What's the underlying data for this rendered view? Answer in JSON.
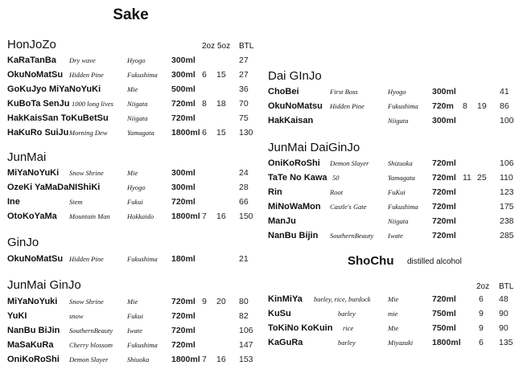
{
  "title": "Sake",
  "headers": {
    "oz2": "2oz",
    "oz5": "5oz",
    "btl": "BTL"
  },
  "sections": [
    {
      "heading": "HonJoZo",
      "items": [
        {
          "name": "KaRaTanBa",
          "desc": "Dry wave",
          "region": "Hyogo",
          "size": "300ml",
          "oz2": "",
          "oz5": "",
          "btl": "27"
        },
        {
          "name": "OkuNoMatSu",
          "desc": "Hidden Pine",
          "region": "Fukushima",
          "size": "300ml",
          "oz2": "6",
          "oz5": "15",
          "btl": "27"
        },
        {
          "name": "GoKuJyo MiYaNoYuKi",
          "desc": "",
          "region": "Mie",
          "size": "500ml",
          "oz2": "",
          "oz5": "",
          "btl": "36"
        },
        {
          "name": "KuBoTa SenJu",
          "desc": "1000 long lives",
          "region": "Niigata",
          "size": "720ml",
          "oz2": "8",
          "oz5": "18",
          "btl": "70"
        },
        {
          "name": "HakKaisSan ToKuBetSu",
          "desc": "",
          "region": "Niigata",
          "size": "720ml",
          "oz2": "",
          "oz5": "",
          "btl": "75"
        },
        {
          "name": "HaKuRo SuiJu",
          "desc": "Morning Dew",
          "region": "Yamagata",
          "size": "1800ml",
          "oz2": "6",
          "oz5": "15",
          "btl": "130"
        }
      ]
    },
    {
      "heading": "JunMai",
      "items": [
        {
          "name": "MiYaNoYuKi",
          "desc": "Snow Shrine",
          "region": "Mie",
          "size": "300ml",
          "oz2": "",
          "oz5": "",
          "btl": "24"
        },
        {
          "name": "OzeKi YaMaDaNIShiKi",
          "desc": "",
          "region": "Hyogo",
          "size": "300ml",
          "oz2": "",
          "oz5": "",
          "btl": "28"
        },
        {
          "name": "Ine",
          "desc": "Stem",
          "region": "Fukui",
          "size": "720ml",
          "oz2": "",
          "oz5": "",
          "btl": "66"
        },
        {
          "name": "OtoKoYaMa",
          "desc": "Mountain Man",
          "region": "Hokkaido",
          "size": "1800ml",
          "oz2": "7",
          "oz5": "16",
          "btl": "150"
        }
      ]
    },
    {
      "heading": "GinJo",
      "items": [
        {
          "name": "OkuNoMatSu",
          "desc": "Hidden Pine",
          "region": "Fukushima",
          "size": "180ml",
          "oz2": "",
          "oz5": "",
          "btl": "21"
        }
      ]
    },
    {
      "heading": "JunMai GinJo",
      "items": [
        {
          "name": "MiYaNoYuki",
          "desc": "Snow Shrine",
          "region": "Mie",
          "size": "720ml",
          "oz2": "9",
          "oz5": "20",
          "btl": "80"
        },
        {
          "name": "YuKI",
          "desc": "snow",
          "region": "Fukui",
          "size": "720ml",
          "oz2": "",
          "oz5": "",
          "btl": "82"
        },
        {
          "name": "NanBu BiJin",
          "desc": "SouthernBeauty",
          "region": "Iwate",
          "size": "720ml",
          "oz2": "",
          "oz5": "",
          "btl": "106"
        },
        {
          "name": "MaSaKuRa",
          "desc": "Cherry blossom",
          "region": "Fukushima",
          "size": "720ml",
          "oz2": "",
          "oz5": "",
          "btl": "147"
        },
        {
          "name": "OniKoRoShi",
          "desc": "Demon Slayer",
          "region": "Shiuoka",
          "size": "1800ml",
          "oz2": "7",
          "oz5": "16",
          "btl": "153"
        }
      ]
    },
    {
      "heading": "Dai GInJo",
      "items": [
        {
          "name": "ChoBei",
          "desc": "First Boss",
          "region": "Hyogo",
          "size": "300ml",
          "oz2": "",
          "oz5": "",
          "btl": "41"
        },
        {
          "name": "OkuNoMatsu",
          "desc": "Hidden Pine",
          "region": "Fukushima",
          "size": "720m",
          "oz2": "8",
          "oz5": "19",
          "btl": "86"
        },
        {
          "name": "HakKaisan",
          "desc": "",
          "region": "Niigata",
          "size": "300ml",
          "oz2": "",
          "oz5": "",
          "btl": "100"
        }
      ]
    },
    {
      "heading": "JunMai DaiGinJo",
      "items": [
        {
          "name": "OniKoRoShi",
          "desc": "Demon Slayer",
          "region": "Shizuoka",
          "size": "720ml",
          "oz2": "",
          "oz5": "",
          "btl": "106"
        },
        {
          "name": "TaTe No Kawa",
          "desc": "50",
          "region": "Yamagata",
          "size": "720ml",
          "oz2": "11",
          "oz5": "25",
          "btl": "110"
        },
        {
          "name": "Rin",
          "desc": "Root",
          "region": "FuKui",
          "size": "720ml",
          "oz2": "",
          "oz5": "",
          "btl": "123"
        },
        {
          "name": "MiNoWaMon",
          "desc": "Castle's Gate",
          "region": "Fukushima",
          "size": "720ml",
          "oz2": "",
          "oz5": "",
          "btl": "175"
        },
        {
          "name": "ManJu",
          "desc": "",
          "region": "Niigata",
          "size": "720ml",
          "oz2": "",
          "oz5": "",
          "btl": "238"
        },
        {
          "name": "NanBu Bijin",
          "desc": "SouthernBeauty",
          "region": "Iwate",
          "size": "720ml",
          "oz2": "",
          "oz5": "",
          "btl": "285"
        }
      ]
    }
  ],
  "shochu": {
    "heading": "ShoChu",
    "subtitle": "distilled alcohol",
    "headers": {
      "oz2": "2oz",
      "btl": "BTL"
    },
    "items": [
      {
        "name": "KinMiYa",
        "desc": "barley, rice, burdock",
        "region": "Mie",
        "size": "720ml",
        "oz2": "6",
        "btl": "48"
      },
      {
        "name": "KuSu",
        "desc": "barley",
        "region": "mie",
        "size": "750ml",
        "oz2": "9",
        "btl": "90"
      },
      {
        "name": "ToKiNo KoKuin",
        "desc": "rice",
        "region": "Mie",
        "size": "750ml",
        "oz2": "9",
        "btl": "90"
      },
      {
        "name": "KaGuRa",
        "desc": "barley",
        "region": "Miyazaki",
        "size": "1800ml",
        "oz2": "6",
        "btl": "135"
      }
    ]
  }
}
